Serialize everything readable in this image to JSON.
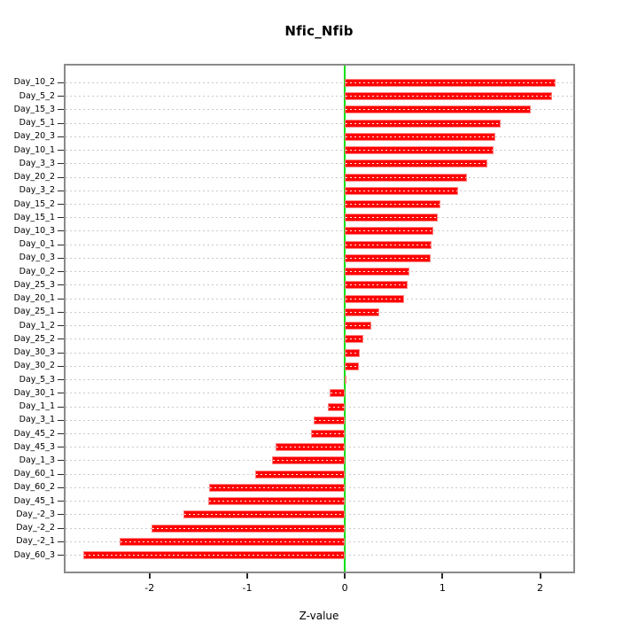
{
  "chart_data": {
    "type": "bar",
    "orientation": "horizontal",
    "title": "Nfic_Nfib",
    "xlabel": "Z-value",
    "ylabel": "",
    "categories": [
      "Day_10_2",
      "Day_5_2",
      "Day_15_3",
      "Day_5_1",
      "Day_20_3",
      "Day_10_1",
      "Day_3_3",
      "Day_20_2",
      "Day_3_2",
      "Day_15_2",
      "Day_15_1",
      "Day_10_3",
      "Day_0_1",
      "Day_0_3",
      "Day_0_2",
      "Day_25_3",
      "Day_20_1",
      "Day_25_1",
      "Day_1_2",
      "Day_25_2",
      "Day_30_3",
      "Day_30_2",
      "Day_5_3",
      "Day_30_1",
      "Day_1_1",
      "Day_3_1",
      "Day_45_2",
      "Day_45_3",
      "Day_1_3",
      "Day_60_1",
      "Day_60_2",
      "Day_45_1",
      "Day_-2_3",
      "Day_-2_2",
      "Day_-2_1",
      "Day_60_3"
    ],
    "values": [
      2.16,
      2.12,
      1.9,
      1.6,
      1.54,
      1.52,
      1.46,
      1.25,
      1.16,
      0.98,
      0.95,
      0.91,
      0.89,
      0.88,
      0.66,
      0.64,
      0.61,
      0.35,
      0.27,
      0.19,
      0.15,
      0.14,
      0.02,
      -0.16,
      -0.17,
      -0.32,
      -0.35,
      -0.71,
      -0.75,
      -0.92,
      -1.39,
      -1.4,
      -1.65,
      -1.98,
      -2.31,
      -2.68
    ],
    "xticks": [
      -2,
      -1,
      0,
      1,
      2
    ],
    "xtick_labels": [
      "-2",
      "-1",
      "0",
      "1",
      "2"
    ],
    "xlim": [
      -2.86,
      2.34
    ],
    "grid": true,
    "legend": false,
    "zero_line": true,
    "colors": {
      "bar_fill": "#ff0000",
      "bar_border": "#ff8585",
      "zero_line": "#00e000",
      "gridline": "#c9c9c9",
      "plot_border": "#8a8a8a",
      "text": "#000000"
    }
  }
}
